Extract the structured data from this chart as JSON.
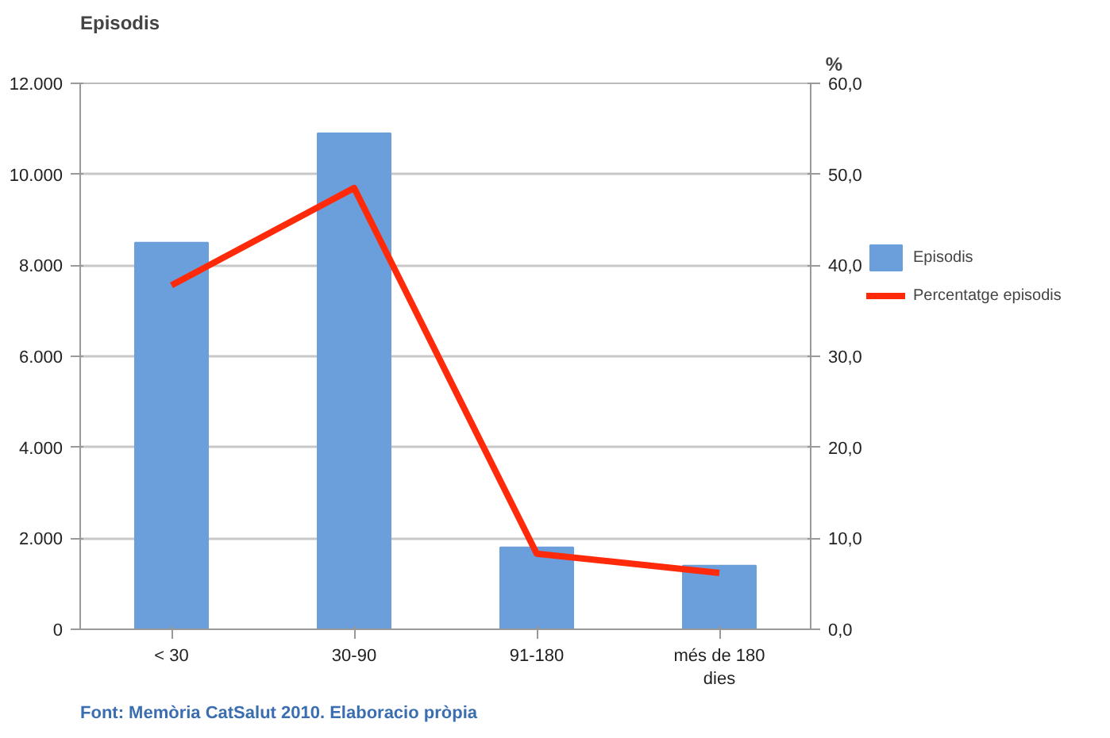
{
  "chart_data": {
    "type": "bar",
    "ylabel": "Episodis",
    "y2label": "%",
    "categories": [
      "< 30",
      "30-90",
      "91-180",
      "més de 180 dies"
    ],
    "series": [
      {
        "name": "Episodis",
        "color": "#6a9fdb",
        "values": [
          8500,
          10900,
          1800,
          1400
        ]
      },
      {
        "name": "Percentatge episodis",
        "type": "line",
        "axis": "y2",
        "color": "#ff2a0a",
        "values": [
          37.8,
          48.5,
          8.3,
          6.2
        ]
      }
    ],
    "ylim": [
      0,
      12000
    ],
    "yticks": [
      {
        "value": 0,
        "label": "0"
      },
      {
        "value": 2000,
        "label": "2.000"
      },
      {
        "value": 4000,
        "label": "4.000"
      },
      {
        "value": 6000,
        "label": "6.000"
      },
      {
        "value": 8000,
        "label": "8.000"
      },
      {
        "value": 10000,
        "label": "10.000"
      },
      {
        "value": 12000,
        "label": "12.000"
      }
    ],
    "y2lim": [
      0,
      60
    ],
    "y2ticks": [
      {
        "value": 0,
        "label": "0,0"
      },
      {
        "value": 10,
        "label": "10,0"
      },
      {
        "value": 20,
        "label": "20,0"
      },
      {
        "value": 30,
        "label": "30,0"
      },
      {
        "value": 40,
        "label": "40,0"
      },
      {
        "value": 50,
        "label": "50,0"
      },
      {
        "value": 60,
        "label": "60,0"
      }
    ],
    "grid": "y",
    "legend": "right",
    "marker": "none",
    "line_style": "solid",
    "annotations": [
      "Font: Memòria CatSalut 2010. Elaboracio pròpia"
    ]
  }
}
